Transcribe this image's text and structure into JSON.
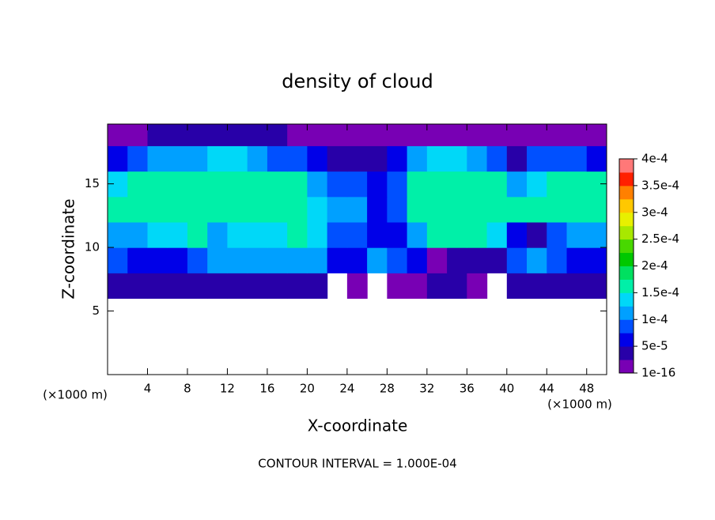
{
  "chart_data": {
    "type": "heatmap",
    "title": "density of cloud",
    "x_label": "X-coordinate",
    "y_label": "Z-coordinate",
    "x_unit": "(×1000 m)",
    "footer": "CONTOUR INTERVAL = 1.000E-04",
    "xlim": [
      0,
      50
    ],
    "ylim": [
      0,
      19.7
    ],
    "xticks": [
      4,
      8,
      12,
      16,
      20,
      24,
      28,
      32,
      36,
      40,
      44,
      48
    ],
    "yticks": [
      5,
      10,
      15
    ],
    "x": [
      1,
      3,
      5,
      7,
      9,
      11,
      13,
      15,
      17,
      19,
      21,
      23,
      25,
      27,
      29,
      31,
      33,
      35,
      37,
      39,
      41,
      43,
      45,
      47,
      49
    ],
    "y": [
      1,
      3,
      5,
      7,
      9,
      11,
      13,
      15,
      17,
      19
    ],
    "z": [
      [
        null,
        null,
        null,
        null,
        null,
        null,
        null,
        null,
        null,
        null,
        null,
        null,
        null,
        null,
        null,
        null,
        null,
        null,
        null,
        null,
        null,
        null,
        null,
        null,
        null
      ],
      [
        null,
        null,
        null,
        null,
        null,
        null,
        null,
        null,
        null,
        null,
        null,
        null,
        null,
        null,
        null,
        null,
        null,
        null,
        null,
        null,
        null,
        null,
        null,
        null,
        null
      ],
      [
        null,
        null,
        null,
        null,
        null,
        null,
        null,
        null,
        null,
        null,
        null,
        null,
        null,
        null,
        null,
        null,
        null,
        null,
        null,
        null,
        null,
        null,
        null,
        null,
        null
      ],
      [
        3e-05,
        3e-05,
        3e-05,
        3e-05,
        4e-05,
        4e-05,
        4e-05,
        4e-05,
        4e-05,
        4e-05,
        3e-05,
        null,
        2e-05,
        null,
        2e-05,
        2e-05,
        4e-05,
        3e-05,
        2e-05,
        null,
        3e-05,
        4e-05,
        4e-05,
        4e-05,
        3e-05
      ],
      [
        9e-05,
        7e-05,
        7e-05,
        7e-05,
        8e-05,
        0.00011,
        0.00011,
        0.00011,
        0.00011,
        0.00011,
        0.00011,
        7e-05,
        6e-05,
        0.000105,
        9e-05,
        6e-05,
        2e-05,
        3e-05,
        4e-05,
        5e-05,
        0.0001,
        0.00011,
        9e-05,
        7e-05,
        6e-05
      ],
      [
        0.00011,
        0.00012,
        0.000145,
        0.000145,
        0.000155,
        0.00012,
        0.000145,
        0.000145,
        0.000145,
        0.000155,
        0.000145,
        8e-05,
        9e-05,
        6e-05,
        7e-05,
        0.00012,
        0.000155,
        0.000155,
        0.000155,
        0.000145,
        7e-05,
        5e-05,
        8e-05,
        0.00012,
        0.00012
      ],
      [
        0.000155,
        0.000155,
        0.00016,
        0.00016,
        0.00016,
        0.00016,
        0.00016,
        0.00016,
        0.00016,
        0.000155,
        0.000145,
        0.00011,
        0.00012,
        7e-05,
        8e-05,
        0.000155,
        0.00016,
        0.00016,
        0.00016,
        0.00016,
        0.00016,
        0.00016,
        0.00016,
        0.000155,
        0.000155
      ],
      [
        0.000145,
        0.000155,
        0.00016,
        0.00016,
        0.00016,
        0.00016,
        0.00016,
        0.00016,
        0.00016,
        0.000155,
        0.00012,
        9e-05,
        0.0001,
        6e-05,
        9e-05,
        0.000155,
        0.00016,
        0.00016,
        0.00016,
        0.000155,
        0.00012,
        0.000145,
        0.000155,
        0.000155,
        0.000155
      ],
      [
        6e-05,
        9e-05,
        0.00011,
        0.00012,
        0.00012,
        0.000145,
        0.000145,
        0.00012,
        0.0001,
        8e-05,
        6e-05,
        5e-05,
        4e-05,
        5e-05,
        6e-05,
        0.00012,
        0.000145,
        0.000145,
        0.00012,
        9e-05,
        5e-05,
        8e-05,
        0.0001,
        8e-05,
        6e-05
      ],
      [
        1e-05,
        2e-05,
        3e-05,
        3e-05,
        3e-05,
        3e-05,
        3e-05,
        3e-05,
        3e-05,
        2e-05,
        2e-05,
        2e-05,
        1e-05,
        2e-05,
        2e-05,
        1e-05,
        1e-05,
        2e-05,
        2e-05,
        2e-05,
        2e-05,
        2e-05,
        1e-05,
        1e-05,
        1e-05
      ]
    ],
    "clim": [
      1e-16,
      0.0004
    ],
    "colors": [
      "#7800b4",
      "#2800a8",
      "#0000e8",
      "#0050ff",
      "#00a0ff",
      "#00d8f8",
      "#00f0a8",
      "#00e060",
      "#00c800",
      "#48d800",
      "#a8e800",
      "#e8f000",
      "#ffc800",
      "#ff8000",
      "#ff2000",
      "#ff7878"
    ],
    "cticks": [
      {
        "value": 1e-16,
        "label": "1e-16"
      },
      {
        "value": 5e-05,
        "label": "5e-5"
      },
      {
        "value": 0.0001,
        "label": "1e-4"
      },
      {
        "value": 0.00015,
        "label": "1.5e-4"
      },
      {
        "value": 0.0002,
        "label": "2e-4"
      },
      {
        "value": 0.00025,
        "label": "2.5e-4"
      },
      {
        "value": 0.0003,
        "label": "3e-4"
      },
      {
        "value": 0.00035,
        "label": "3.5e-4"
      },
      {
        "value": 0.0004,
        "label": "4e-4"
      }
    ]
  }
}
